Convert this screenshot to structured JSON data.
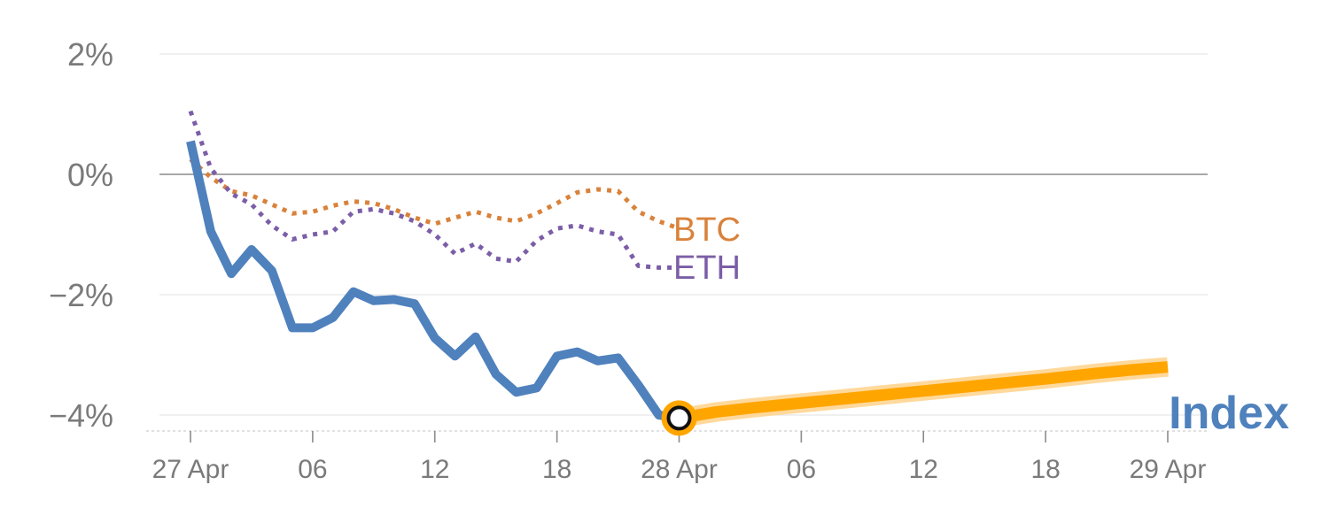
{
  "chart_data": {
    "type": "line",
    "yunit": "%",
    "ylim": [
      -4.25,
      2
    ],
    "yticks": [
      {
        "value": 2,
        "label": "2%"
      },
      {
        "value": 0,
        "label": "0%"
      },
      {
        "value": -2,
        "label": "−2%"
      },
      {
        "value": -4,
        "label": "−4%"
      }
    ],
    "xlim": [
      0,
      40
    ],
    "xticks": [
      {
        "value": 0,
        "label": "27 Apr"
      },
      {
        "value": 5,
        "label": "06"
      },
      {
        "value": 10,
        "label": "12"
      },
      {
        "value": 15,
        "label": "18"
      },
      {
        "value": 20,
        "label": "28 Apr"
      },
      {
        "value": 25,
        "label": "06"
      },
      {
        "value": 30,
        "label": "12"
      },
      {
        "value": 35,
        "label": "18"
      },
      {
        "value": 40,
        "label": "29 Apr"
      }
    ],
    "zero_line": true,
    "grid": true,
    "series": [
      {
        "name": "BTC",
        "color": "#d9823b",
        "style": "dotted",
        "x": [
          0,
          0.83,
          1.67,
          2.5,
          3.33,
          4.17,
          5,
          5.83,
          6.67,
          7.5,
          8.33,
          9.17,
          10,
          10.83,
          11.67,
          12.5,
          13.33,
          14.17,
          15,
          15.83,
          16.67,
          17.5,
          18.33,
          19.17,
          20
        ],
        "y": [
          0.25,
          -0.05,
          -0.28,
          -0.35,
          -0.5,
          -0.65,
          -0.62,
          -0.52,
          -0.45,
          -0.48,
          -0.58,
          -0.72,
          -0.82,
          -0.72,
          -0.62,
          -0.72,
          -0.78,
          -0.65,
          -0.48,
          -0.3,
          -0.25,
          -0.28,
          -0.62,
          -0.78,
          -0.9
        ]
      },
      {
        "name": "ETH",
        "color": "#7b5ea7",
        "style": "dotted",
        "x": [
          0,
          0.83,
          1.67,
          2.5,
          3.33,
          4.17,
          5,
          5.83,
          6.67,
          7.5,
          8.33,
          9.17,
          10,
          10.83,
          11.67,
          12.5,
          13.33,
          14.17,
          15,
          15.83,
          16.67,
          17.5,
          18.33,
          19.17,
          20
        ],
        "y": [
          1.05,
          0.1,
          -0.32,
          -0.5,
          -0.85,
          -1.08,
          -1.0,
          -0.95,
          -0.62,
          -0.58,
          -0.65,
          -0.78,
          -1.0,
          -1.32,
          -1.15,
          -1.4,
          -1.45,
          -1.1,
          -0.9,
          -0.85,
          -0.95,
          -1.0,
          -1.52,
          -1.55,
          -1.55
        ]
      },
      {
        "name": "Index",
        "color": "#4f81bd",
        "style": "solid",
        "x": [
          0,
          0.83,
          1.67,
          2.5,
          3.33,
          4.17,
          5,
          5.83,
          6.67,
          7.5,
          8.33,
          9.17,
          10,
          10.83,
          11.67,
          12.5,
          13.33,
          14.17,
          15,
          15.83,
          16.67,
          17.5,
          18.33,
          19.17,
          20
        ],
        "y": [
          0.55,
          -0.95,
          -1.65,
          -1.25,
          -1.6,
          -2.55,
          -2.55,
          -2.38,
          -1.95,
          -2.1,
          -2.08,
          -2.15,
          -2.72,
          -3.02,
          -2.7,
          -3.32,
          -3.62,
          -3.55,
          -3.02,
          -2.95,
          -3.1,
          -3.05,
          -3.5,
          -4.0,
          -4.05
        ]
      }
    ],
    "forecast": {
      "color": "#ffa500",
      "x": [
        20,
        21.5,
        23,
        25,
        27,
        29,
        31,
        33,
        35,
        37,
        38.5,
        40
      ],
      "y": [
        -4.05,
        -3.95,
        -3.88,
        -3.8,
        -3.72,
        -3.64,
        -3.56,
        -3.48,
        -3.4,
        -3.31,
        -3.25,
        -3.2
      ]
    },
    "marker": {
      "x": 20,
      "y": -4.05
    }
  }
}
